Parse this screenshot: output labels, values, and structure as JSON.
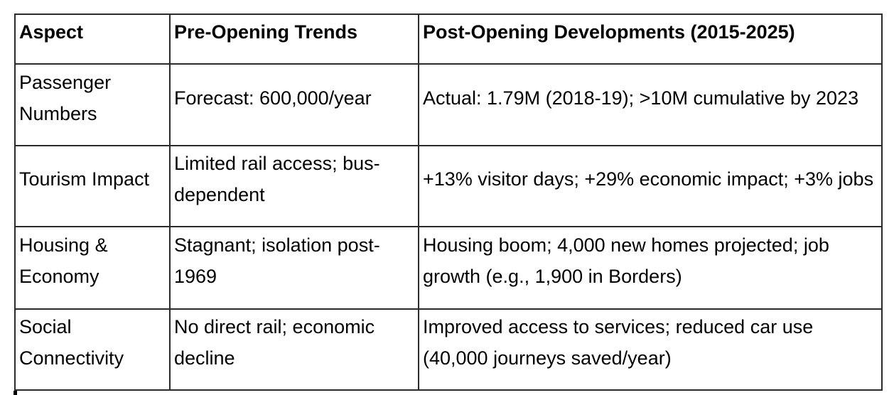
{
  "table": {
    "columns": [
      {
        "label": "Aspect"
      },
      {
        "label": "Pre-Opening Trends"
      },
      {
        "label": "Post-Opening Developments (2015-2025)"
      }
    ],
    "rows": [
      {
        "aspect": "Passenger Numbers",
        "pre": "Forecast: 600,000/year",
        "post": "Actual: 1.79M (2018-19); >10M cumulative by 2023"
      },
      {
        "aspect": "Tourism Impact",
        "pre": "Limited rail access; bus-dependent",
        "post": "+13% visitor days; +29% economic impact; +3% jobs"
      },
      {
        "aspect": "Housing & Economy",
        "pre": "Stagnant; isolation post-1969",
        "post": "Housing boom; 4,000 new homes projected; job growth (e.g., 1,900 in Borders)"
      },
      {
        "aspect": "Social Connectivity",
        "pre": "No direct rail; economic decline",
        "post": "Improved access to services; reduced car use (40,000 journeys saved/year)"
      }
    ],
    "colors": {
      "border": "#2b2b2b",
      "text": "#000000",
      "background": "#ffffff"
    }
  }
}
